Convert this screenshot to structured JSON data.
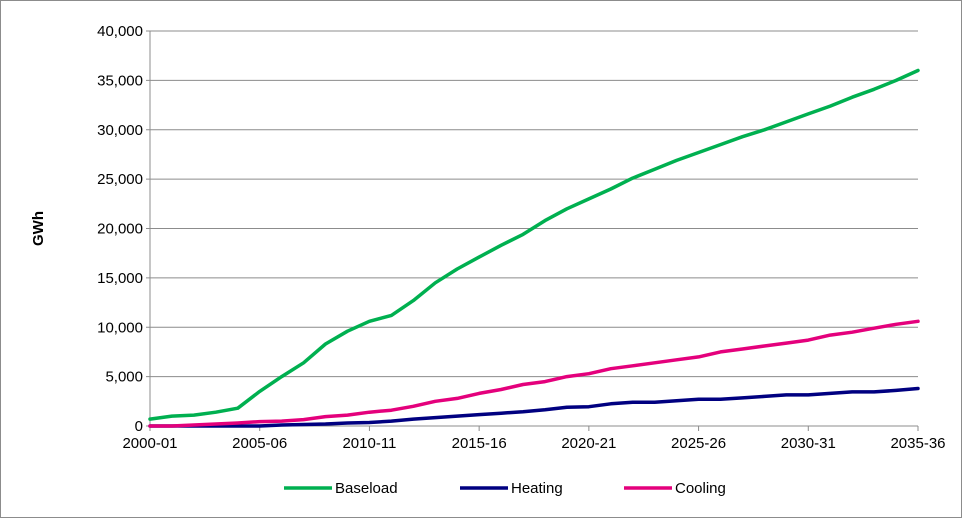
{
  "chart_data": {
    "type": "line",
    "title": "",
    "xlabel": "",
    "ylabel": "GWh",
    "ylim": [
      0,
      40000
    ],
    "yticks": [
      0,
      5000,
      10000,
      15000,
      20000,
      25000,
      30000,
      35000,
      40000
    ],
    "ytick_labels": [
      "0",
      "5,000",
      "10,000",
      "15,000",
      "20,000",
      "25,000",
      "30,000",
      "35,000",
      "40,000"
    ],
    "grid": true,
    "legend_position": "bottom",
    "categories": [
      "2000-01",
      "2001-02",
      "2002-03",
      "2003-04",
      "2004-05",
      "2005-06",
      "2006-07",
      "2007-08",
      "2008-09",
      "2009-10",
      "2010-11",
      "2011-12",
      "2012-13",
      "2013-14",
      "2014-15",
      "2015-16",
      "2016-17",
      "2017-18",
      "2018-19",
      "2019-20",
      "2020-21",
      "2021-22",
      "2022-23",
      "2023-24",
      "2024-25",
      "2025-26",
      "2026-27",
      "2027-28",
      "2028-29",
      "2029-30",
      "2030-31",
      "2031-32",
      "2032-33",
      "2033-34",
      "2034-35",
      "2035-36"
    ],
    "xtick_labels": [
      "2000-01",
      "2005-06",
      "2010-11",
      "2015-16",
      "2020-21",
      "2025-26",
      "2030-31",
      "2035-36"
    ],
    "series": [
      {
        "name": "Baseload",
        "color": "#00b050",
        "values": [
          700,
          1000,
          1100,
          1400,
          1800,
          3500,
          5000,
          6400,
          8300,
          9600,
          10600,
          11200,
          12700,
          14500,
          15900,
          17100,
          18300,
          19400,
          20800,
          22000,
          23000,
          24000,
          25100,
          26000,
          26900,
          27700,
          28500,
          29300,
          30000,
          30800,
          31600,
          32400,
          33300,
          34100,
          35000,
          36000
        ]
      },
      {
        "name": "Heating",
        "color": "#000080",
        "values": [
          0,
          0,
          0,
          0,
          0,
          0,
          100,
          150,
          200,
          300,
          350,
          500,
          700,
          850,
          1000,
          1150,
          1300,
          1450,
          1650,
          1900,
          1950,
          2250,
          2400,
          2400,
          2550,
          2700,
          2700,
          2850,
          3000,
          3150,
          3150,
          3300,
          3450,
          3450,
          3600,
          3800
        ]
      },
      {
        "name": "Cooling",
        "color": "#e4007c",
        "values": [
          0,
          0,
          100,
          200,
          300,
          450,
          500,
          650,
          950,
          1100,
          1400,
          1600,
          2000,
          2500,
          2800,
          3300,
          3700,
          4200,
          4500,
          5000,
          5300,
          5800,
          6100,
          6400,
          6700,
          7000,
          7500,
          7800,
          8100,
          8400,
          8700,
          9200,
          9500,
          9900,
          10300,
          10600
        ]
      }
    ]
  }
}
